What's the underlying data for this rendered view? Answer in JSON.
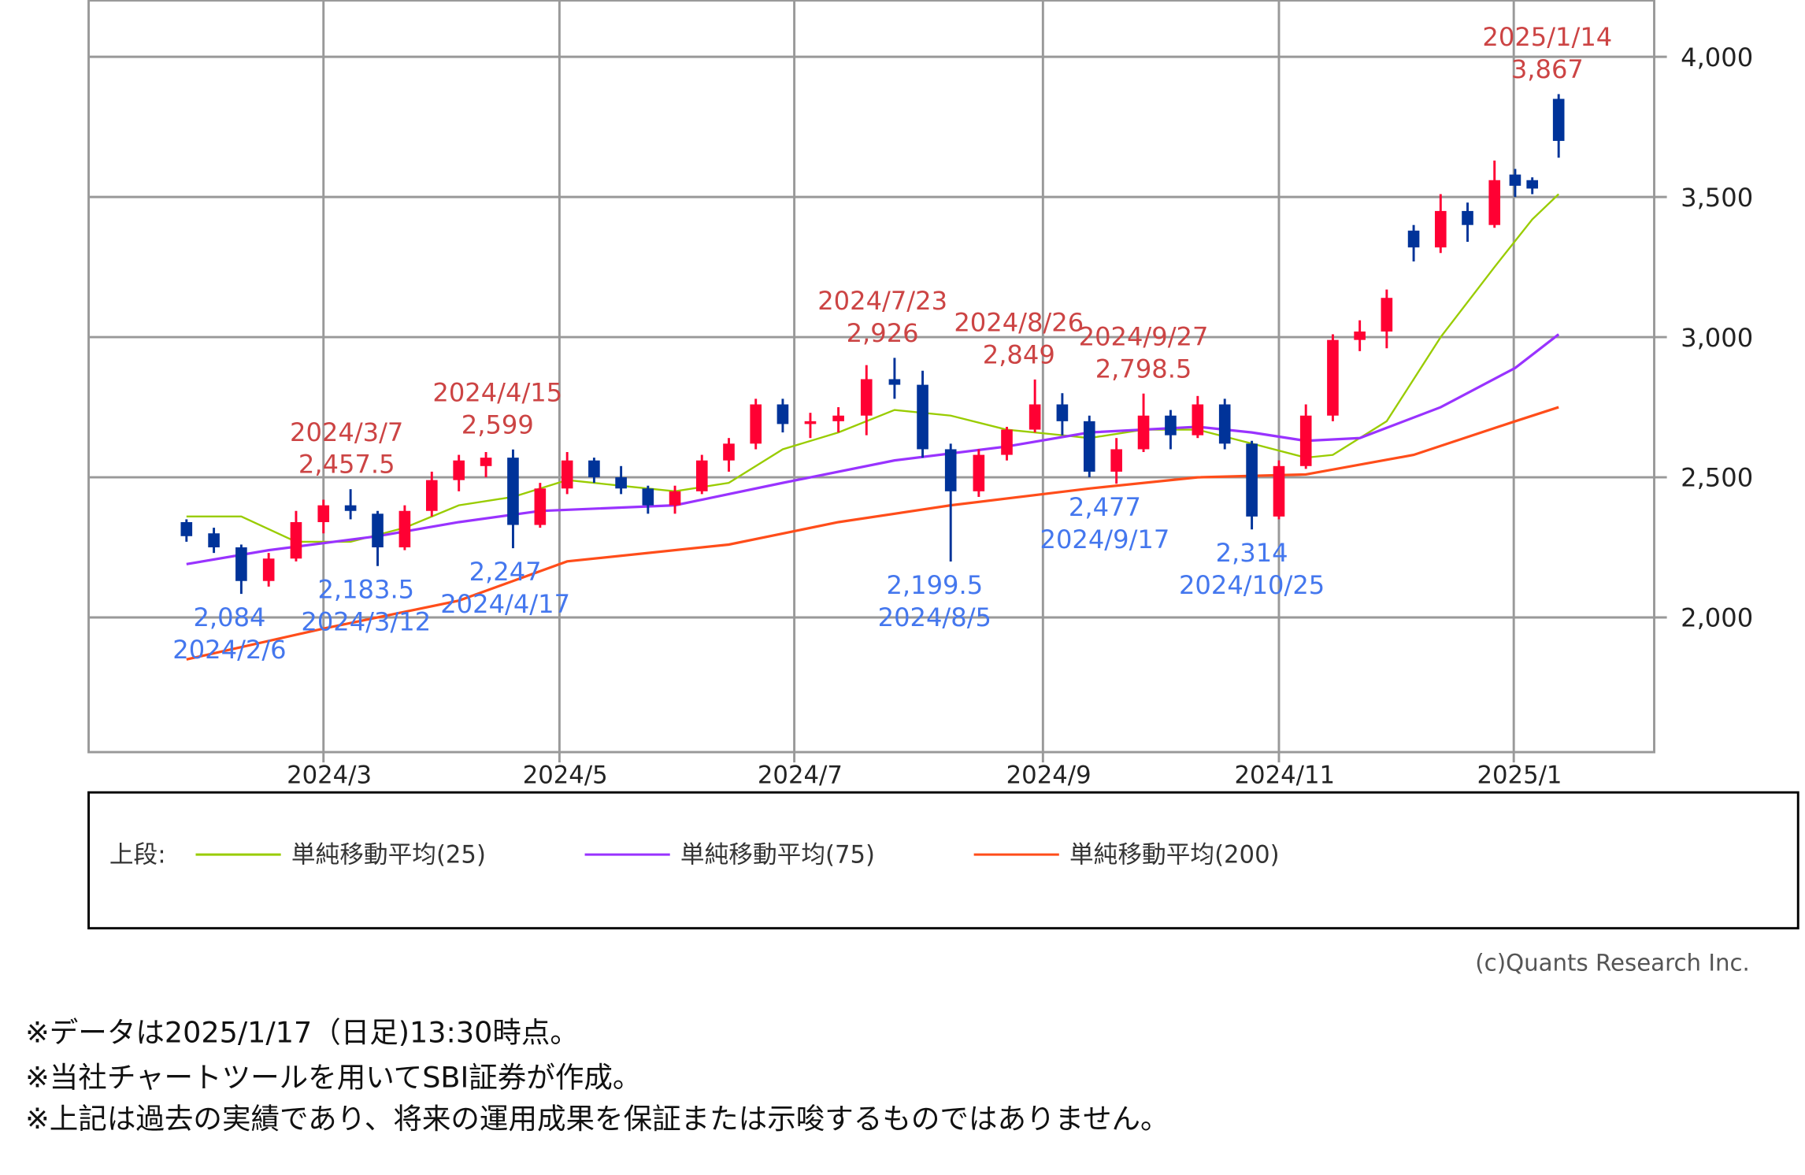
{
  "chart_data": {
    "type": "candlestick",
    "title": "",
    "xlabel": "",
    "ylabel": "",
    "ylim": [
      1520,
      4200
    ],
    "grid": true,
    "y_ticks": [
      {
        "value": 2000,
        "label": "2,000"
      },
      {
        "value": 2500,
        "label": "2,500"
      },
      {
        "value": 3000,
        "label": "3,000"
      },
      {
        "value": 3500,
        "label": "3,500"
      },
      {
        "value": 4000,
        "label": "4,000"
      }
    ],
    "x_ticks": [
      {
        "date": "2024-03-01",
        "label": "2024/3"
      },
      {
        "date": "2024-05-01",
        "label": "2024/5"
      },
      {
        "date": "2024-07-01",
        "label": "2024/7"
      },
      {
        "date": "2024-09-01",
        "label": "2024/9"
      },
      {
        "date": "2024-11-01",
        "label": "2024/11"
      },
      {
        "date": "2025-01-01",
        "label": "2025/1"
      }
    ],
    "colors": {
      "up": "#ff0033",
      "down": "#003399",
      "grid": "#999999",
      "high_label": "#cc4444",
      "low_label": "#4477ee"
    },
    "candles": [
      [
        "2024-01-26",
        2340,
        2350,
        2270,
        2290
      ],
      [
        "2024-02-02",
        2300,
        2320,
        2230,
        2250
      ],
      [
        "2024-02-09",
        2250,
        2260,
        2084,
        2130
      ],
      [
        "2024-02-16",
        2130,
        2230,
        2110,
        2210
      ],
      [
        "2024-02-23",
        2210,
        2380,
        2200,
        2340
      ],
      [
        "2024-03-01",
        2340,
        2420,
        2300,
        2400
      ],
      [
        "2024-03-08",
        2400,
        2457.5,
        2350,
        2380
      ],
      [
        "2024-03-15",
        2370,
        2380,
        2183.5,
        2250
      ],
      [
        "2024-03-22",
        2250,
        2400,
        2240,
        2380
      ],
      [
        "2024-03-29",
        2380,
        2520,
        2360,
        2490
      ],
      [
        "2024-04-05",
        2490,
        2580,
        2450,
        2560
      ],
      [
        "2024-04-12",
        2540,
        2590,
        2500,
        2570
      ],
      [
        "2024-04-19",
        2570,
        2599,
        2247,
        2330
      ],
      [
        "2024-04-26",
        2330,
        2480,
        2320,
        2460
      ],
      [
        "2024-05-03",
        2460,
        2590,
        2440,
        2560
      ],
      [
        "2024-05-10",
        2560,
        2570,
        2480,
        2500
      ],
      [
        "2024-05-17",
        2500,
        2540,
        2440,
        2460
      ],
      [
        "2024-05-24",
        2460,
        2470,
        2370,
        2400
      ],
      [
        "2024-05-31",
        2400,
        2470,
        2370,
        2450
      ],
      [
        "2024-06-07",
        2450,
        2580,
        2440,
        2560
      ],
      [
        "2024-06-14",
        2560,
        2640,
        2520,
        2620
      ],
      [
        "2024-06-21",
        2620,
        2780,
        2600,
        2760
      ],
      [
        "2024-06-28",
        2760,
        2780,
        2660,
        2690
      ],
      [
        "2024-07-05",
        2690,
        2730,
        2640,
        2700
      ],
      [
        "2024-07-12",
        2700,
        2750,
        2660,
        2720
      ],
      [
        "2024-07-19",
        2720,
        2900,
        2650,
        2850
      ],
      [
        "2024-07-26",
        2850,
        2926,
        2780,
        2830
      ],
      [
        "2024-08-02",
        2830,
        2880,
        2570,
        2600
      ],
      [
        "2024-08-09",
        2600,
        2620,
        2199.5,
        2450
      ],
      [
        "2024-08-16",
        2450,
        2600,
        2430,
        2580
      ],
      [
        "2024-08-23",
        2580,
        2680,
        2560,
        2670
      ],
      [
        "2024-08-30",
        2670,
        2849,
        2660,
        2760
      ],
      [
        "2024-09-06",
        2760,
        2800,
        2650,
        2700
      ],
      [
        "2024-09-13",
        2700,
        2720,
        2500,
        2520
      ],
      [
        "2024-09-20",
        2520,
        2640,
        2477,
        2600
      ],
      [
        "2024-09-27",
        2600,
        2798.5,
        2590,
        2720
      ],
      [
        "2024-10-04",
        2720,
        2740,
        2600,
        2650
      ],
      [
        "2024-10-11",
        2650,
        2790,
        2640,
        2760
      ],
      [
        "2024-10-18",
        2760,
        2780,
        2600,
        2620
      ],
      [
        "2024-10-25",
        2620,
        2630,
        2314,
        2360
      ],
      [
        "2024-11-01",
        2360,
        2560,
        2350,
        2540
      ],
      [
        "2024-11-08",
        2540,
        2760,
        2530,
        2720
      ],
      [
        "2024-11-15",
        2720,
        3010,
        2700,
        2990
      ],
      [
        "2024-11-22",
        2990,
        3060,
        2950,
        3020
      ],
      [
        "2024-11-29",
        3020,
        3170,
        2960,
        3140
      ],
      [
        "2024-12-06",
        3380,
        3400,
        3270,
        3320
      ],
      [
        "2024-12-13",
        3320,
        3510,
        3300,
        3450
      ],
      [
        "2024-12-20",
        3450,
        3480,
        3340,
        3400
      ],
      [
        "2024-12-27",
        3400,
        3630,
        3390,
        3560
      ],
      [
        "2025-01-03",
        3580,
        3600,
        3500,
        3540
      ],
      [
        "2025-01-10",
        3560,
        3570,
        3510,
        3530
      ],
      [
        "2025-01-17",
        3850,
        3867,
        3640,
        3700
      ]
    ],
    "series": [
      {
        "name": "単純移動平均(25)",
        "color": "#99cc00",
        "points": [
          [
            "2024-01-26",
            2360
          ],
          [
            "2024-02-09",
            2360
          ],
          [
            "2024-02-23",
            2270
          ],
          [
            "2024-03-08",
            2270
          ],
          [
            "2024-03-22",
            2320
          ],
          [
            "2024-04-05",
            2400
          ],
          [
            "2024-04-19",
            2430
          ],
          [
            "2024-05-03",
            2490
          ],
          [
            "2024-05-17",
            2470
          ],
          [
            "2024-05-31",
            2450
          ],
          [
            "2024-06-14",
            2480
          ],
          [
            "2024-06-28",
            2600
          ],
          [
            "2024-07-12",
            2660
          ],
          [
            "2024-07-26",
            2740
          ],
          [
            "2024-08-09",
            2720
          ],
          [
            "2024-08-23",
            2670
          ],
          [
            "2024-09-06",
            2650
          ],
          [
            "2024-09-13",
            2640
          ],
          [
            "2024-09-27",
            2670
          ],
          [
            "2024-10-11",
            2670
          ],
          [
            "2024-10-25",
            2620
          ],
          [
            "2024-11-08",
            2570
          ],
          [
            "2024-11-15",
            2580
          ],
          [
            "2024-11-29",
            2700
          ],
          [
            "2024-12-13",
            3000
          ],
          [
            "2024-12-27",
            3250
          ],
          [
            "2025-01-10",
            3420
          ],
          [
            "2025-01-17",
            3510
          ]
        ]
      },
      {
        "name": "単純移動平均(75)",
        "color": "#9933ff",
        "points": [
          [
            "2024-01-26",
            2190
          ],
          [
            "2024-02-16",
            2240
          ],
          [
            "2024-03-15",
            2290
          ],
          [
            "2024-04-05",
            2340
          ],
          [
            "2024-04-26",
            2380
          ],
          [
            "2024-05-31",
            2400
          ],
          [
            "2024-06-28",
            2480
          ],
          [
            "2024-07-26",
            2560
          ],
          [
            "2024-08-23",
            2610
          ],
          [
            "2024-09-13",
            2660
          ],
          [
            "2024-10-11",
            2680
          ],
          [
            "2024-10-25",
            2660
          ],
          [
            "2024-11-08",
            2630
          ],
          [
            "2024-11-22",
            2640
          ],
          [
            "2024-12-13",
            2750
          ],
          [
            "2025-01-03",
            2890
          ],
          [
            "2025-01-17",
            3010
          ]
        ]
      },
      {
        "name": "単純移動平均(200)",
        "color": "#ff4d1a",
        "points": [
          [
            "2024-01-26",
            1850
          ],
          [
            "2024-03-01",
            1960
          ],
          [
            "2024-04-05",
            2060
          ],
          [
            "2024-05-03",
            2200
          ],
          [
            "2024-06-14",
            2260
          ],
          [
            "2024-07-12",
            2340
          ],
          [
            "2024-08-09",
            2400
          ],
          [
            "2024-09-13",
            2460
          ],
          [
            "2024-10-11",
            2500
          ],
          [
            "2024-11-08",
            2510
          ],
          [
            "2024-12-06",
            2580
          ],
          [
            "2025-01-03",
            2700
          ],
          [
            "2025-01-17",
            2750
          ]
        ]
      }
    ],
    "annotations": [
      {
        "kind": "high",
        "date": "2024-03-07",
        "date_label": "2024/3/7",
        "value_label": "2,457.5",
        "value": 2457.5
      },
      {
        "kind": "high",
        "date": "2024-04-15",
        "date_label": "2024/4/15",
        "value_label": "2,599",
        "value": 2599
      },
      {
        "kind": "high",
        "date": "2024-07-23",
        "date_label": "2024/7/23",
        "value_label": "2,926",
        "value": 2926
      },
      {
        "kind": "high",
        "date": "2024-08-26",
        "date_label": "2024/8/26",
        "value_label": "2,849",
        "value": 2849
      },
      {
        "kind": "high",
        "date": "2024-09-27",
        "date_label": "2024/9/27",
        "value_label": "2,798.5",
        "value": 2798.5
      },
      {
        "kind": "high",
        "date": "2025-01-14",
        "date_label": "2025/1/14",
        "value_label": "3,867",
        "value": 3867
      },
      {
        "kind": "low",
        "date": "2024-02-06",
        "date_label": "2024/2/6",
        "value_label": "2,084",
        "value": 2084
      },
      {
        "kind": "low",
        "date": "2024-03-12",
        "date_label": "2024/3/12",
        "value_label": "2,183.5",
        "value": 2183.5
      },
      {
        "kind": "low",
        "date": "2024-04-17",
        "date_label": "2024/4/17",
        "value_label": "2,247",
        "value": 2247
      },
      {
        "kind": "low",
        "date": "2024-08-05",
        "date_label": "2024/8/5",
        "value_label": "2,199.5",
        "value": 2199.5
      },
      {
        "kind": "low",
        "date": "2024-09-17",
        "date_label": "2024/9/17",
        "value_label": "2,477",
        "value": 2477
      },
      {
        "kind": "low",
        "date": "2024-10-25",
        "date_label": "2024/10/25",
        "value_label": "2,314",
        "value": 2314
      }
    ]
  },
  "legend": {
    "prefix": "上段:",
    "items": [
      {
        "label": "単純移動平均(25)",
        "color": "#99cc00"
      },
      {
        "label": "単純移動平均(75)",
        "color": "#9933ff"
      },
      {
        "label": "単純移動平均(200)",
        "color": "#ff4d1a"
      }
    ]
  },
  "copyright": "(c)Quants Research Inc.",
  "notes": [
    "※データは2025/1/17（日足)13:30時点。",
    "※当社チャートツールを用いてSBI証券が作成。",
    "※上記は過去の実績であり、将来の運用成果を保証または示唆するものではありません。"
  ]
}
